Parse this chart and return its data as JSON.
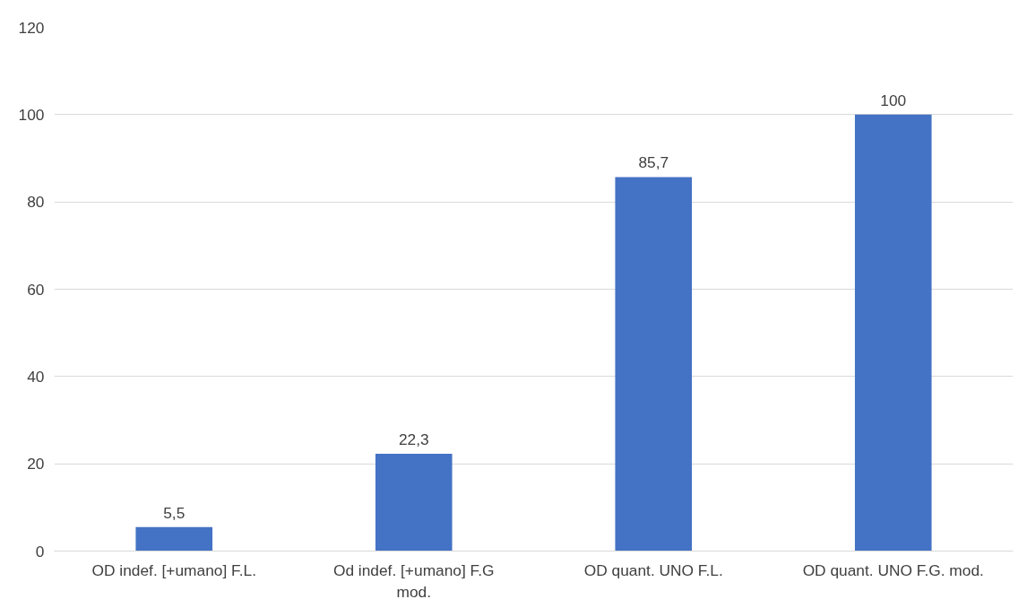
{
  "chart_data": {
    "type": "bar",
    "categories": [
      "OD indef. [+umano] F.L.",
      "Od indef. [+umano] F.G mod.",
      "OD quant. UNO F.L.",
      "OD quant. UNO F.G. mod."
    ],
    "values": [
      5.5,
      22.3,
      85.7,
      100
    ],
    "value_labels": [
      "5,5",
      "22,3",
      "85,7",
      "100"
    ],
    "color": "#4472c4",
    "ylim": [
      0,
      120
    ],
    "yticks": [
      0,
      20,
      40,
      60,
      80,
      100,
      120
    ],
    "grid": "y"
  }
}
